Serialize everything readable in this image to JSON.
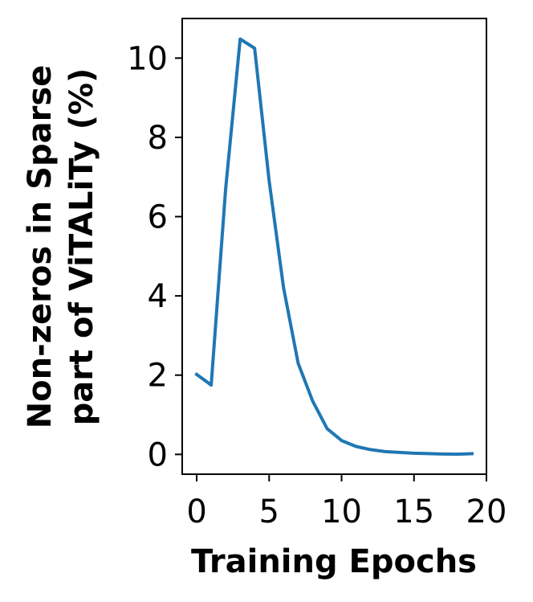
{
  "chart_data": {
    "type": "line",
    "title": "",
    "xlabel": "Training Epochs",
    "ylabel_lines": [
      "Non-zeros in Sparse",
      "part of ViTALiTy (%)"
    ],
    "xlim": [
      -1,
      20
    ],
    "ylim": [
      -0.5,
      11
    ],
    "xticks": [
      0,
      5,
      10,
      15,
      20
    ],
    "yticks": [
      0,
      2,
      4,
      6,
      8,
      10
    ],
    "grid": false,
    "legend": "none",
    "series": [
      {
        "color": "#1f77b4",
        "x": [
          0,
          1,
          2,
          3,
          4,
          5,
          6,
          7,
          8,
          9,
          10,
          11,
          12,
          13,
          14,
          15,
          16,
          17,
          18,
          19
        ],
        "y": [
          2.02,
          1.75,
          6.7,
          10.48,
          10.25,
          6.9,
          4.2,
          2.3,
          1.35,
          0.65,
          0.35,
          0.2,
          0.12,
          0.07,
          0.05,
          0.03,
          0.02,
          0.01,
          0.005,
          0.02
        ]
      }
    ]
  }
}
